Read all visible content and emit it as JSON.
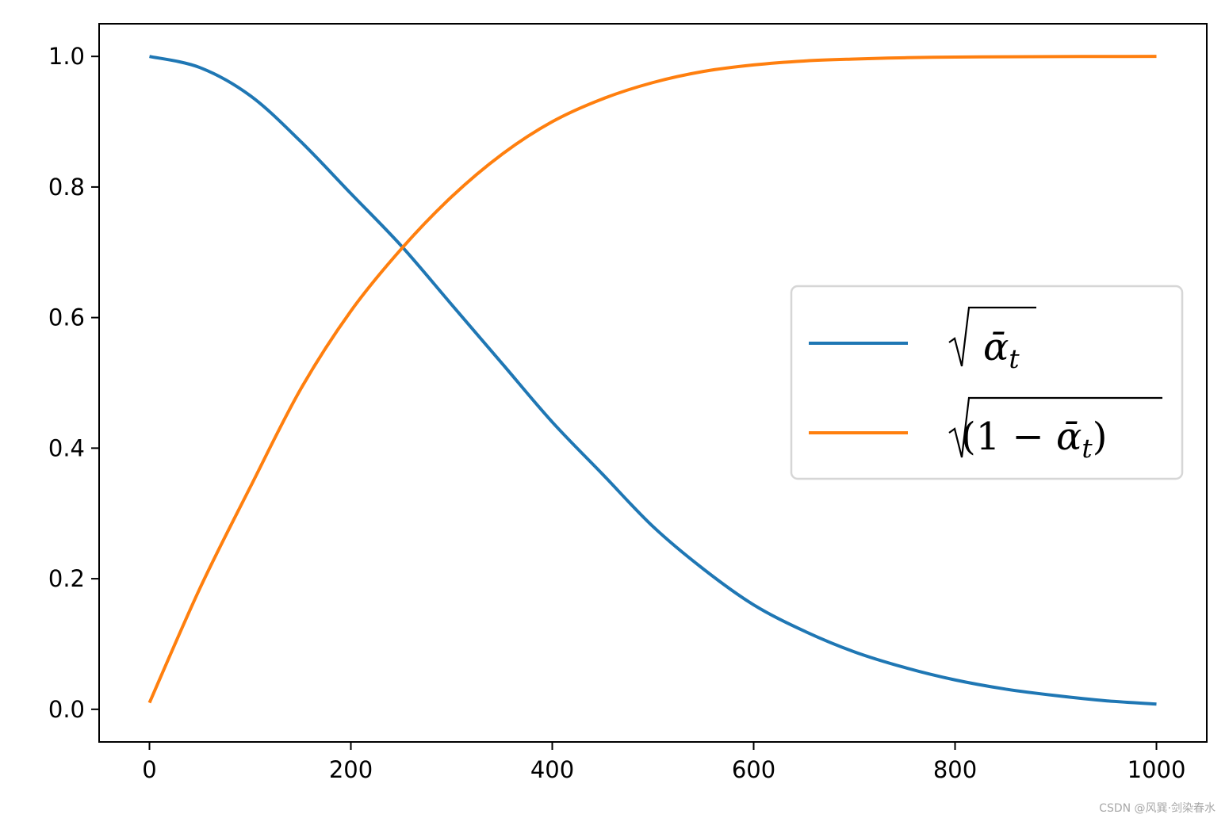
{
  "chart_data": {
    "type": "line",
    "x": [
      0,
      50,
      100,
      150,
      200,
      250,
      300,
      350,
      400,
      450,
      500,
      550,
      600,
      650,
      700,
      750,
      800,
      850,
      900,
      950,
      1000
    ],
    "series": [
      {
        "name": "√ᾱ_t",
        "color": "#1f77b4",
        "values": [
          1.0,
          0.983,
          0.94,
          0.87,
          0.79,
          0.71,
          0.62,
          0.53,
          0.44,
          0.36,
          0.28,
          0.215,
          0.16,
          0.12,
          0.088,
          0.064,
          0.045,
          0.031,
          0.021,
          0.013,
          0.008
        ]
      },
      {
        "name": "√(1 − ᾱ_t)",
        "color": "#ff7f0e",
        "values": [
          0.01,
          0.185,
          0.34,
          0.49,
          0.61,
          0.705,
          0.785,
          0.85,
          0.9,
          0.935,
          0.96,
          0.977,
          0.987,
          0.993,
          0.996,
          0.998,
          0.999,
          0.9995,
          0.9998,
          0.9999,
          1.0
        ]
      }
    ],
    "xlim": [
      -50,
      1050
    ],
    "ylim": [
      -0.05,
      1.05
    ],
    "xticks": [
      "0",
      "200",
      "400",
      "600",
      "800",
      "1000"
    ],
    "xtick_values": [
      0,
      200,
      400,
      600,
      800,
      1000
    ],
    "yticks": [
      "0.0",
      "0.2",
      "0.4",
      "0.6",
      "0.8",
      "1.0"
    ],
    "ytick_values": [
      0,
      0.2,
      0.4,
      0.6,
      0.8,
      1.0
    ],
    "grid": false,
    "legend_placement": "center-right",
    "legend": {
      "entry1": {
        "prefix": "",
        "bar": "ᾱ",
        "sub": "t",
        "suffix": ""
      },
      "entry2": {
        "prefix": "(1 − ",
        "bar": "ᾱ",
        "sub": "t",
        "suffix": ")"
      }
    }
  },
  "watermark": "CSDN @风巽·剑染春水"
}
